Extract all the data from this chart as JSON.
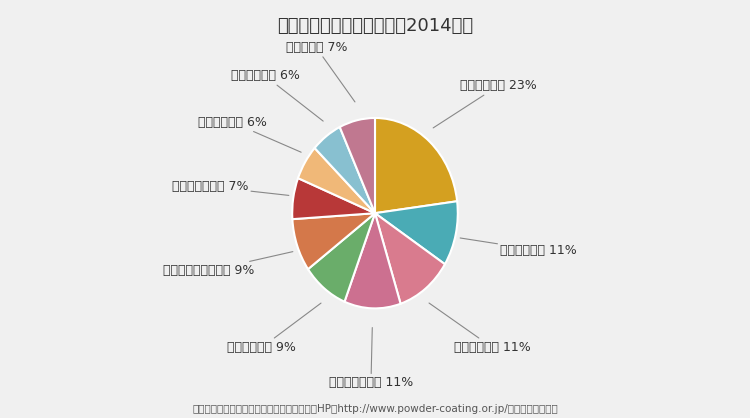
{
  "title": "粉体塗料の国内使用分野（2014年）",
  "footnote": "（引用）日本パウダーコーティング協同組合HP（http://www.powder-coating.or.jp/）より、当社作成",
  "slices": [
    {
      "label": "（金属家具）",
      "pct": 23,
      "color": "#D4A020"
    },
    {
      "label": "（水道資材）",
      "pct": 11,
      "color": "#4AABB5"
    },
    {
      "label": "（電気機器）",
      "pct": 11,
      "color": "#D97B8E"
    },
    {
      "label": "（自動車部品）",
      "pct": 11,
      "color": "#CC7090"
    },
    {
      "label": "（家電製品）",
      "pct": 9,
      "color": "#6AAD6A"
    },
    {
      "label": "（建設・産業機械）",
      "pct": 9,
      "color": "#D4784A"
    },
    {
      "label": "（機械・器具）",
      "pct": 7,
      "color": "#B83838"
    },
    {
      "label": "（建築資材）",
      "pct": 6,
      "color": "#F0B878"
    },
    {
      "label": "（道路資材）",
      "pct": 6,
      "color": "#88C0D0"
    },
    {
      "label": "（その他）",
      "pct": 7,
      "color": "#C07890"
    }
  ],
  "bg_color": "#F0F0F0",
  "title_fontsize": 13,
  "label_fontsize": 9,
  "footnote_fontsize": 7.5
}
